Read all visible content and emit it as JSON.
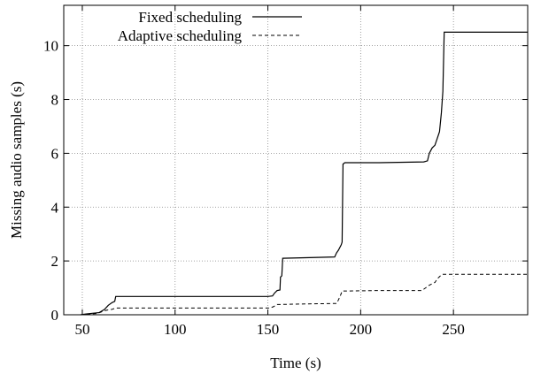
{
  "chart_data": {
    "type": "line",
    "xlabel": "Time (s)",
    "ylabel": "Missing audio samples (s)",
    "xlim": [
      40,
      290
    ],
    "ylim": [
      0,
      11.5
    ],
    "x_ticks": [
      50,
      100,
      150,
      200,
      250
    ],
    "y_ticks": [
      0,
      2,
      4,
      6,
      8,
      10
    ],
    "grid": true,
    "legend_position": "top-left",
    "series": [
      {
        "name": "Fixed scheduling",
        "style": "solid",
        "color": "#000000",
        "points": [
          [
            49,
            0.0
          ],
          [
            52,
            0.03
          ],
          [
            56,
            0.06
          ],
          [
            59,
            0.08
          ],
          [
            62,
            0.2
          ],
          [
            64,
            0.35
          ],
          [
            66,
            0.45
          ],
          [
            67.5,
            0.5
          ],
          [
            68,
            0.68
          ],
          [
            100,
            0.68
          ],
          [
            150,
            0.68
          ],
          [
            152.5,
            0.7
          ],
          [
            153.5,
            0.8
          ],
          [
            155,
            0.9
          ],
          [
            156.5,
            0.92
          ],
          [
            156.8,
            1.4
          ],
          [
            157.5,
            1.45
          ],
          [
            158,
            2.1
          ],
          [
            170,
            2.12
          ],
          [
            186,
            2.15
          ],
          [
            187,
            2.3
          ],
          [
            188,
            2.4
          ],
          [
            189.5,
            2.6
          ],
          [
            190,
            2.7
          ],
          [
            190.5,
            5.6
          ],
          [
            191.5,
            5.65
          ],
          [
            210,
            5.65
          ],
          [
            234,
            5.68
          ],
          [
            236,
            5.72
          ],
          [
            237,
            6.0
          ],
          [
            238.5,
            6.2
          ],
          [
            240,
            6.3
          ],
          [
            241,
            6.5
          ],
          [
            242.5,
            6.8
          ],
          [
            243.5,
            7.5
          ],
          [
            244.3,
            8.3
          ],
          [
            245,
            10.5
          ],
          [
            260,
            10.5
          ],
          [
            290,
            10.5
          ]
        ]
      },
      {
        "name": "Adaptive scheduling",
        "style": "dashed",
        "color": "#000000",
        "points": [
          [
            49,
            0.0
          ],
          [
            53,
            0.02
          ],
          [
            58,
            0.05
          ],
          [
            60,
            0.1
          ],
          [
            62,
            0.15
          ],
          [
            64,
            0.18
          ],
          [
            66,
            0.2
          ],
          [
            68,
            0.25
          ],
          [
            100,
            0.25
          ],
          [
            151,
            0.25
          ],
          [
            153,
            0.3
          ],
          [
            155,
            0.38
          ],
          [
            170,
            0.4
          ],
          [
            187,
            0.42
          ],
          [
            188,
            0.55
          ],
          [
            189,
            0.7
          ],
          [
            190,
            0.88
          ],
          [
            210,
            0.9
          ],
          [
            233,
            0.9
          ],
          [
            235,
            1.0
          ],
          [
            237,
            1.1
          ],
          [
            240,
            1.2
          ],
          [
            241.5,
            1.35
          ],
          [
            243,
            1.45
          ],
          [
            244,
            1.5
          ],
          [
            260,
            1.5
          ],
          [
            290,
            1.5
          ]
        ]
      }
    ]
  }
}
